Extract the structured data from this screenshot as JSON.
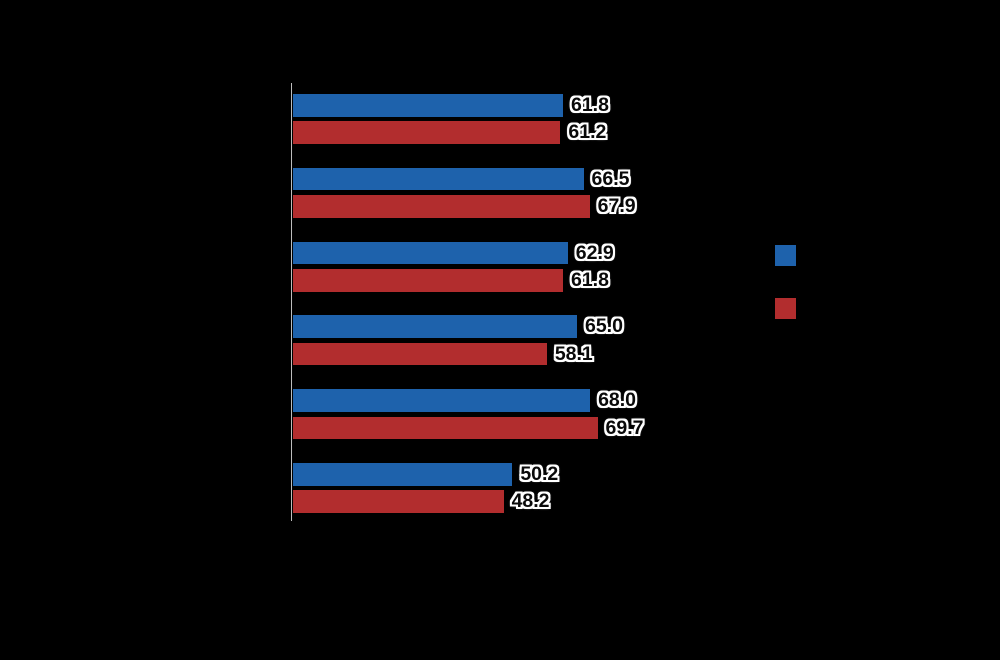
{
  "chart_data": {
    "type": "bar",
    "orientation": "horizontal",
    "background_color": "#000000",
    "axis_line_color": "#BDBDBD",
    "grid": "off",
    "legend_position": "right",
    "categories": [
      "",
      "",
      "",
      "",
      "",
      ""
    ],
    "series": [
      {
        "name": "blue",
        "color": "#1E62AC",
        "values": [
          61.8,
          66.5,
          62.9,
          65.0,
          68.0,
          50.2
        ],
        "labels": [
          "61.8",
          "66.5",
          "62.9",
          "65.0",
          "68.0",
          "50.2"
        ]
      },
      {
        "name": "red",
        "color": "#B22D2E",
        "values": [
          61.2,
          67.9,
          61.8,
          58.1,
          69.7,
          48.2
        ],
        "labels": [
          "61.2",
          "67.9",
          "61.8",
          "58.1",
          "69.7",
          "48.2"
        ]
      }
    ],
    "value_label_style": {
      "text_color": "#0A0A0A",
      "halo_color": "#FFFFFF"
    },
    "legend": {
      "items": [
        {
          "label": "",
          "color": "#1E62AC"
        },
        {
          "label": "",
          "color": "#B22D2E"
        }
      ]
    }
  }
}
